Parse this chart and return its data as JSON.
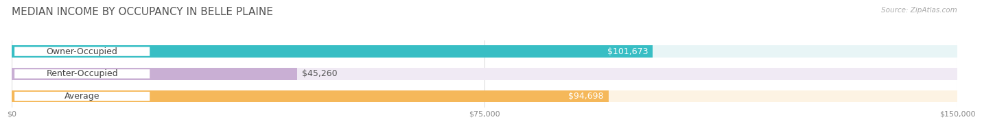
{
  "title": "MEDIAN INCOME BY OCCUPANCY IN BELLE PLAINE",
  "source": "Source: ZipAtlas.com",
  "categories": [
    "Owner-Occupied",
    "Renter-Occupied",
    "Average"
  ],
  "values": [
    101673,
    45260,
    94698
  ],
  "labels": [
    "$101,673",
    "$45,260",
    "$94,698"
  ],
  "bar_colors": [
    "#38bec4",
    "#c9afd4",
    "#f5b85a"
  ],
  "bar_bg_colors": [
    "#e8f5f6",
    "#f0eaf4",
    "#fdf3e3"
  ],
  "xlim": [
    0,
    150000
  ],
  "xticks": [
    0,
    75000,
    150000
  ],
  "xtick_labels": [
    "$0",
    "$75,000",
    "$150,000"
  ],
  "background_color": "#ffffff",
  "title_fontsize": 11,
  "label_fontsize": 9,
  "bar_height": 0.55
}
